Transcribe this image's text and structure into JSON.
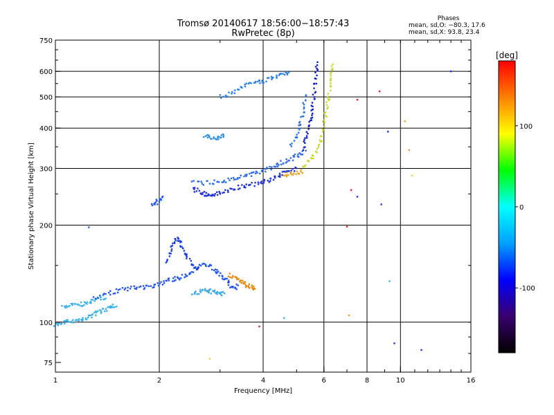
{
  "header": {
    "title_line1": "Tromsø 20140617 18:56:00−18:57:43",
    "title_line2": "RwPretec (8p)",
    "phases_title": "Phases",
    "phases_o": "mean, sd,O: −80.3, 17.6",
    "phases_x": "mean, sd,X:  93.8, 23.4"
  },
  "chart_data": {
    "type": "scatter",
    "xlabel": "Frequency [MHz]",
    "ylabel": "Stationary phase Virtual Height [km]",
    "xscale": "log",
    "yscale": "log",
    "xlim": [
      1,
      16
    ],
    "ylim": [
      70,
      750
    ],
    "x_ticks": [
      1,
      2,
      4,
      6,
      8,
      10,
      16
    ],
    "y_ticks": [
      75,
      100,
      200,
      300,
      400,
      500,
      600,
      750
    ],
    "x_grid": [
      2,
      4,
      6,
      8,
      10
    ],
    "y_grid": [
      100,
      200,
      300,
      400,
      500,
      600
    ],
    "grid": true,
    "colorbar": {
      "label": "[deg]",
      "min": -180,
      "max": 180,
      "ticks": [
        -100,
        0,
        100
      ],
      "colors": [
        "#000000",
        "#3a006e",
        "#0000ff",
        "#00a0ff",
        "#00ffff",
        "#00ff00",
        "#ffff00",
        "#ff8000",
        "#ff0000"
      ]
    },
    "series": [
      {
        "color": "#38b0e8",
        "points": [
          [
            1.0,
            98
          ],
          [
            1.03,
            99
          ],
          [
            1.07,
            100
          ],
          [
            1.1,
            101
          ],
          [
            1.15,
            101
          ],
          [
            1.2,
            102
          ],
          [
            1.25,
            104
          ],
          [
            1.3,
            106
          ],
          [
            1.35,
            108
          ],
          [
            1.4,
            110
          ],
          [
            1.45,
            112
          ],
          [
            1.5,
            113
          ]
        ]
      },
      {
        "color": "#38b0e8",
        "points": [
          [
            1.05,
            112
          ],
          [
            1.1,
            113
          ],
          [
            1.15,
            113
          ],
          [
            1.2,
            114
          ],
          [
            1.25,
            116
          ],
          [
            1.3,
            118
          ],
          [
            1.35,
            119
          ],
          [
            1.4,
            120
          ]
        ]
      },
      {
        "color": "#2255ee",
        "points": [
          [
            1.3,
            118
          ],
          [
            1.4,
            122
          ],
          [
            1.5,
            125
          ],
          [
            1.6,
            127
          ],
          [
            1.7,
            128
          ],
          [
            1.8,
            128
          ],
          [
            1.9,
            130
          ],
          [
            2.0,
            132
          ],
          [
            2.1,
            134
          ],
          [
            2.2,
            136
          ],
          [
            2.3,
            138
          ],
          [
            2.4,
            140
          ],
          [
            2.5,
            145
          ],
          [
            2.6,
            150
          ],
          [
            2.7,
            152
          ],
          [
            2.8,
            150
          ],
          [
            2.9,
            145
          ],
          [
            3.0,
            140
          ],
          [
            3.1,
            136
          ],
          [
            3.2,
            130
          ],
          [
            3.3,
            128
          ],
          [
            3.4,
            130
          ]
        ]
      },
      {
        "color": "#1a3de0",
        "points": [
          [
            2.1,
            155
          ],
          [
            2.15,
            165
          ],
          [
            2.2,
            175
          ],
          [
            2.25,
            182
          ],
          [
            2.3,
            178
          ],
          [
            2.35,
            168
          ],
          [
            2.4,
            160
          ],
          [
            2.5,
            150
          ],
          [
            2.6,
            145
          ]
        ]
      },
      {
        "color": "#38a8e0",
        "points": [
          [
            2.5,
            122
          ],
          [
            2.6,
            124
          ],
          [
            2.7,
            126
          ],
          [
            2.8,
            125
          ],
          [
            2.9,
            124
          ],
          [
            3.0,
            122
          ],
          [
            3.1,
            123
          ]
        ]
      },
      {
        "color": "#e88a10",
        "points": [
          [
            3.2,
            140
          ],
          [
            3.3,
            138
          ],
          [
            3.4,
            135
          ],
          [
            3.5,
            132
          ],
          [
            3.6,
            130
          ],
          [
            3.7,
            128
          ],
          [
            3.8,
            126
          ]
        ]
      },
      {
        "color": "#2030d8",
        "points": [
          [
            2.5,
            260
          ],
          [
            2.6,
            255
          ],
          [
            2.7,
            250
          ],
          [
            2.8,
            248
          ],
          [
            2.9,
            248
          ],
          [
            3.0,
            252
          ],
          [
            3.2,
            258
          ],
          [
            3.4,
            262
          ],
          [
            3.6,
            265
          ],
          [
            3.8,
            268
          ],
          [
            4.0,
            272
          ],
          [
            4.2,
            278
          ],
          [
            4.4,
            285
          ],
          [
            4.6,
            290
          ],
          [
            4.8,
            295
          ],
          [
            5.0,
            300
          ]
        ]
      },
      {
        "color": "#2a6ae8",
        "points": [
          [
            2.5,
            275
          ],
          [
            2.7,
            270
          ],
          [
            2.9,
            272
          ],
          [
            3.1,
            275
          ],
          [
            3.3,
            278
          ],
          [
            3.5,
            282
          ],
          [
            3.7,
            288
          ],
          [
            3.9,
            292
          ],
          [
            4.1,
            298
          ],
          [
            4.3,
            305
          ],
          [
            4.5,
            312
          ],
          [
            4.7,
            318
          ],
          [
            4.9,
            325
          ],
          [
            5.1,
            332
          ],
          [
            5.3,
            340
          ]
        ]
      },
      {
        "color": "#e8a020",
        "points": [
          [
            4.6,
            285
          ],
          [
            4.8,
            290
          ],
          [
            5.0,
            292
          ],
          [
            5.2,
            295
          ]
        ]
      },
      {
        "color": "#c8d828",
        "points": [
          [
            5.2,
            300
          ],
          [
            5.4,
            315
          ],
          [
            5.6,
            330
          ],
          [
            5.8,
            350
          ],
          [
            5.9,
            380
          ],
          [
            6.0,
            420
          ],
          [
            6.1,
            460
          ],
          [
            6.2,
            500
          ],
          [
            6.25,
            550
          ],
          [
            6.3,
            600
          ],
          [
            6.35,
            630
          ]
        ]
      },
      {
        "color": "#1020c8",
        "points": [
          [
            5.2,
            340
          ],
          [
            5.3,
            370
          ],
          [
            5.4,
            400
          ],
          [
            5.5,
            430
          ],
          [
            5.55,
            460
          ],
          [
            5.6,
            500
          ],
          [
            5.65,
            550
          ],
          [
            5.7,
            600
          ],
          [
            5.72,
            640
          ]
        ]
      },
      {
        "color": "#2a70e0",
        "points": [
          [
            4.8,
            350
          ],
          [
            5.0,
            380
          ],
          [
            5.1,
            410
          ],
          [
            5.2,
            440
          ],
          [
            5.25,
            480
          ],
          [
            5.3,
            520
          ]
        ]
      },
      {
        "color": "#2a80e8",
        "points": [
          [
            3.0,
            500
          ],
          [
            3.2,
            510
          ],
          [
            3.4,
            530
          ],
          [
            3.6,
            545
          ],
          [
            3.8,
            555
          ],
          [
            4.0,
            560
          ],
          [
            4.2,
            570
          ],
          [
            4.4,
            580
          ],
          [
            4.6,
            590
          ],
          [
            4.8,
            600
          ]
        ]
      },
      {
        "color": "#3090e0",
        "points": [
          [
            2.7,
            380
          ],
          [
            2.8,
            375
          ],
          [
            2.9,
            370
          ],
          [
            3.0,
            375
          ],
          [
            3.1,
            385
          ]
        ]
      },
      {
        "color": "#2255ee",
        "points": [
          [
            1.9,
            230
          ],
          [
            1.95,
            235
          ],
          [
            2.0,
            240
          ],
          [
            2.05,
            245
          ]
        ]
      }
    ],
    "scatter_points": [
      {
        "x": 1.25,
        "y": 197,
        "color": "#2255ee"
      },
      {
        "x": 7.0,
        "y": 198,
        "color": "#e02020"
      },
      {
        "x": 7.5,
        "y": 245,
        "color": "#2030d8"
      },
      {
        "x": 8.8,
        "y": 232,
        "color": "#2030d8"
      },
      {
        "x": 9.6,
        "y": 86,
        "color": "#2030d8"
      },
      {
        "x": 11.5,
        "y": 82,
        "color": "#2030d8"
      },
      {
        "x": 14.0,
        "y": 600,
        "color": "#2030d8"
      },
      {
        "x": 10.3,
        "y": 420,
        "color": "#e8a020"
      },
      {
        "x": 8.7,
        "y": 520,
        "color": "#e02020"
      },
      {
        "x": 7.5,
        "y": 490,
        "color": "#e02020"
      },
      {
        "x": 10.6,
        "y": 342,
        "color": "#e8a020"
      },
      {
        "x": 9.2,
        "y": 390,
        "color": "#2030d8"
      },
      {
        "x": 7.1,
        "y": 105,
        "color": "#e8a020"
      },
      {
        "x": 2.8,
        "y": 77,
        "color": "#e8d040"
      },
      {
        "x": 4.6,
        "y": 103,
        "color": "#38b0e8"
      },
      {
        "x": 3.9,
        "y": 97,
        "color": "#e02020"
      },
      {
        "x": 9.3,
        "y": 134,
        "color": "#38b0e8"
      },
      {
        "x": 10.8,
        "y": 285,
        "color": "#e8d040"
      },
      {
        "x": 7.2,
        "y": 257,
        "color": "#e02020"
      }
    ]
  }
}
